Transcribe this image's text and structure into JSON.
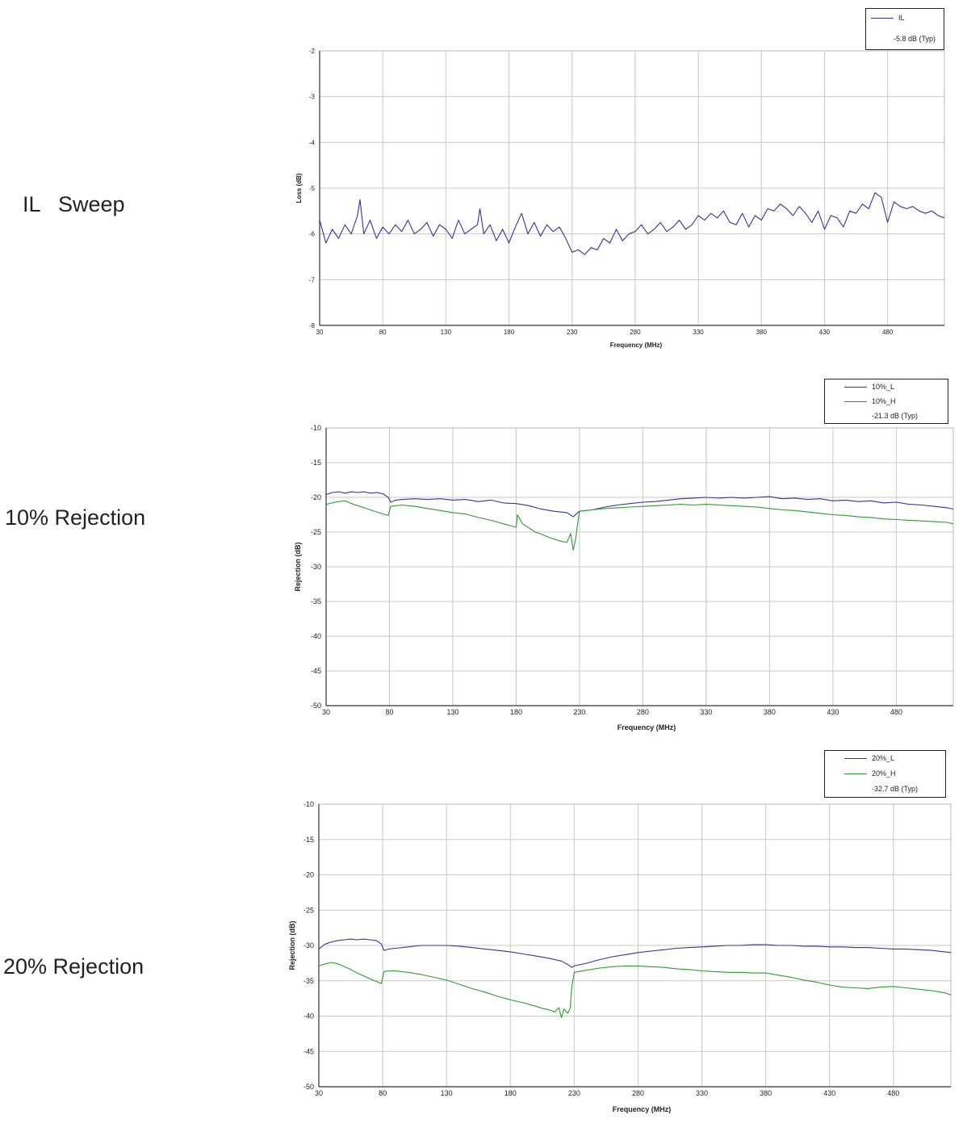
{
  "labels": {
    "il": "IL   Sweep",
    "r10": "10% Rejection",
    "r20": "20% Rejection"
  },
  "colors": {
    "L": "#34349a",
    "H": "#2e9a2e",
    "grid": "#c8c8c8",
    "axis": "#333333"
  },
  "chart_data": [
    {
      "type": "line",
      "xlabel": "Frequency (MHz)",
      "ylabel": "Loss (dB)",
      "xlim": [
        30,
        525
      ],
      "ylim": [
        -8,
        -2
      ],
      "xticks": [
        30,
        80,
        130,
        180,
        230,
        280,
        330,
        380,
        430,
        480
      ],
      "yticks": [
        -2,
        -3,
        -4,
        -5,
        -6,
        -7,
        -8
      ],
      "grid": true,
      "legend_position": "top-right",
      "legend_note": "-5.8 dB (Typ)",
      "series": [
        {
          "name": "IL",
          "color": "#34349a",
          "x": [
            30,
            35,
            40,
            45,
            50,
            55,
            60,
            62,
            65,
            70,
            75,
            80,
            85,
            90,
            95,
            100,
            105,
            110,
            115,
            120,
            125,
            130,
            135,
            140,
            145,
            150,
            155,
            157,
            160,
            165,
            170,
            175,
            180,
            185,
            190,
            195,
            200,
            205,
            210,
            215,
            220,
            225,
            230,
            235,
            240,
            245,
            250,
            255,
            260,
            265,
            270,
            275,
            280,
            285,
            290,
            295,
            300,
            305,
            310,
            315,
            320,
            325,
            330,
            335,
            340,
            345,
            350,
            355,
            360,
            365,
            370,
            375,
            380,
            385,
            390,
            395,
            400,
            405,
            410,
            415,
            420,
            425,
            430,
            435,
            440,
            445,
            450,
            455,
            460,
            465,
            470,
            475,
            480,
            485,
            490,
            495,
            500,
            505,
            510,
            515,
            520,
            525
          ],
          "y": [
            -5.7,
            -6.2,
            -5.9,
            -6.1,
            -5.8,
            -6.0,
            -5.6,
            -5.25,
            -6.0,
            -5.7,
            -6.1,
            -5.85,
            -6.0,
            -5.8,
            -5.95,
            -5.7,
            -6.0,
            -5.9,
            -5.75,
            -6.05,
            -5.8,
            -5.9,
            -6.1,
            -5.7,
            -6.0,
            -5.9,
            -5.8,
            -5.45,
            -6.0,
            -5.8,
            -6.15,
            -5.9,
            -6.2,
            -5.85,
            -5.55,
            -6.0,
            -5.75,
            -6.05,
            -5.8,
            -5.95,
            -5.85,
            -6.1,
            -6.4,
            -6.35,
            -6.45,
            -6.3,
            -6.35,
            -6.1,
            -6.2,
            -5.9,
            -6.15,
            -6.0,
            -5.95,
            -5.8,
            -6.0,
            -5.9,
            -5.75,
            -5.95,
            -5.85,
            -5.7,
            -5.9,
            -5.8,
            -5.6,
            -5.7,
            -5.55,
            -5.65,
            -5.5,
            -5.75,
            -5.8,
            -5.55,
            -5.85,
            -5.6,
            -5.7,
            -5.45,
            -5.5,
            -5.35,
            -5.45,
            -5.6,
            -5.4,
            -5.55,
            -5.75,
            -5.5,
            -5.9,
            -5.6,
            -5.65,
            -5.85,
            -5.5,
            -5.55,
            -5.35,
            -5.45,
            -5.1,
            -5.2,
            -5.75,
            -5.3,
            -5.4,
            -5.45,
            -5.4,
            -5.5,
            -5.55,
            -5.5,
            -5.6,
            -5.65
          ]
        }
      ]
    },
    {
      "type": "line",
      "xlabel": "Frequency (MHz)",
      "ylabel": "Rejection (dB)",
      "xlim": [
        30,
        525
      ],
      "ylim": [
        -50,
        -10
      ],
      "xticks": [
        30,
        80,
        130,
        180,
        230,
        280,
        330,
        380,
        430,
        480
      ],
      "yticks": [
        -10,
        -15,
        -20,
        -25,
        -30,
        -35,
        -40,
        -45,
        -50
      ],
      "grid": true,
      "legend_position": "top-right",
      "legend_note": "-21.3 dB (Typ)",
      "series": [
        {
          "name": "10%_L",
          "color": "#34349a",
          "x": [
            30,
            35,
            40,
            45,
            50,
            55,
            60,
            65,
            70,
            75,
            79,
            81,
            85,
            90,
            100,
            110,
            120,
            130,
            140,
            150,
            160,
            170,
            180,
            190,
            200,
            210,
            220,
            225,
            228,
            230,
            240,
            250,
            260,
            270,
            280,
            290,
            300,
            310,
            320,
            330,
            340,
            350,
            360,
            370,
            380,
            390,
            400,
            410,
            420,
            430,
            440,
            450,
            460,
            470,
            480,
            490,
            500,
            510,
            520,
            525
          ],
          "y": [
            -19.6,
            -19.3,
            -19.2,
            -19.4,
            -19.2,
            -19.3,
            -19.2,
            -19.4,
            -19.3,
            -19.5,
            -20.0,
            -20.7,
            -20.4,
            -20.3,
            -20.2,
            -20.3,
            -20.2,
            -20.4,
            -20.3,
            -20.6,
            -20.4,
            -20.8,
            -20.9,
            -21.2,
            -21.7,
            -22.0,
            -22.2,
            -22.8,
            -22.3,
            -22.0,
            -21.8,
            -21.4,
            -21.1,
            -20.9,
            -20.7,
            -20.6,
            -20.4,
            -20.2,
            -20.1,
            -20.0,
            -20.1,
            -20.0,
            -20.1,
            -20.0,
            -19.9,
            -20.2,
            -20.1,
            -20.3,
            -20.2,
            -20.5,
            -20.4,
            -20.6,
            -20.5,
            -20.8,
            -20.7,
            -21.0,
            -21.1,
            -21.3,
            -21.5,
            -21.7
          ]
        },
        {
          "name": "10%_H",
          "color": "#2e9a2e",
          "x": [
            30,
            35,
            40,
            45,
            50,
            55,
            60,
            65,
            70,
            75,
            79,
            81,
            85,
            90,
            100,
            110,
            120,
            130,
            140,
            150,
            160,
            170,
            180,
            181,
            185,
            190,
            195,
            200,
            205,
            210,
            215,
            220,
            223,
            225,
            227,
            228,
            230,
            240,
            250,
            260,
            270,
            280,
            290,
            300,
            310,
            320,
            330,
            340,
            350,
            360,
            370,
            380,
            390,
            400,
            410,
            420,
            430,
            440,
            450,
            460,
            470,
            480,
            490,
            500,
            510,
            520,
            525
          ],
          "y": [
            -21.0,
            -20.8,
            -20.6,
            -20.5,
            -20.9,
            -21.2,
            -21.5,
            -21.8,
            -22.1,
            -22.4,
            -22.6,
            -21.3,
            -21.2,
            -21.1,
            -21.3,
            -21.6,
            -21.9,
            -22.2,
            -22.4,
            -22.9,
            -23.3,
            -23.8,
            -24.3,
            -22.5,
            -23.8,
            -24.4,
            -25.0,
            -25.3,
            -25.7,
            -26.0,
            -26.3,
            -26.5,
            -25.2,
            -27.6,
            -26.0,
            -24.5,
            -22.0,
            -21.8,
            -21.6,
            -21.5,
            -21.4,
            -21.3,
            -21.2,
            -21.1,
            -21.0,
            -21.1,
            -21.0,
            -21.1,
            -21.2,
            -21.3,
            -21.4,
            -21.6,
            -21.8,
            -21.9,
            -22.1,
            -22.3,
            -22.5,
            -22.6,
            -22.8,
            -22.9,
            -23.1,
            -23.2,
            -23.3,
            -23.4,
            -23.5,
            -23.6,
            -23.8
          ]
        }
      ]
    },
    {
      "type": "line",
      "xlabel": "Frequency (MHz)",
      "ylabel": "Rejection (dB)",
      "xlim": [
        30,
        525
      ],
      "ylim": [
        -50,
        -10
      ],
      "xticks": [
        30,
        80,
        130,
        180,
        230,
        280,
        330,
        380,
        430,
        480
      ],
      "yticks": [
        -10,
        -15,
        -20,
        -25,
        -30,
        -35,
        -40,
        -45,
        -50
      ],
      "grid": true,
      "legend_position": "top-right",
      "legend_note": "-32.7 dB (Typ)",
      "series": [
        {
          "name": "20%_L",
          "color": "#34349a",
          "x": [
            30,
            35,
            40,
            45,
            50,
            55,
            60,
            65,
            70,
            75,
            79,
            81,
            85,
            90,
            100,
            110,
            120,
            130,
            140,
            150,
            160,
            170,
            180,
            190,
            200,
            210,
            220,
            225,
            228,
            230,
            240,
            250,
            260,
            270,
            280,
            290,
            300,
            310,
            320,
            330,
            340,
            350,
            360,
            370,
            380,
            390,
            400,
            410,
            420,
            430,
            440,
            450,
            460,
            470,
            480,
            490,
            500,
            510,
            520,
            525
          ],
          "y": [
            -30.5,
            -29.8,
            -29.5,
            -29.3,
            -29.2,
            -29.1,
            -29.2,
            -29.1,
            -29.2,
            -29.3,
            -29.8,
            -30.7,
            -30.5,
            -30.4,
            -30.2,
            -30.0,
            -30.0,
            -30.0,
            -30.1,
            -30.3,
            -30.5,
            -30.7,
            -30.9,
            -31.2,
            -31.5,
            -31.8,
            -32.2,
            -32.7,
            -33.1,
            -32.9,
            -32.5,
            -32.0,
            -31.6,
            -31.3,
            -31.0,
            -30.8,
            -30.6,
            -30.4,
            -30.3,
            -30.2,
            -30.1,
            -30.0,
            -30.0,
            -29.9,
            -29.9,
            -30.0,
            -30.0,
            -30.1,
            -30.1,
            -30.2,
            -30.2,
            -30.3,
            -30.3,
            -30.4,
            -30.5,
            -30.5,
            -30.6,
            -30.7,
            -30.9,
            -31.0
          ]
        },
        {
          "name": "20%_H",
          "color": "#2e9a2e",
          "x": [
            30,
            35,
            40,
            45,
            50,
            55,
            60,
            65,
            70,
            75,
            79,
            81,
            85,
            90,
            100,
            110,
            120,
            130,
            140,
            150,
            160,
            170,
            180,
            190,
            200,
            205,
            210,
            215,
            218,
            220,
            222,
            225,
            227,
            228,
            230,
            240,
            250,
            260,
            270,
            280,
            290,
            300,
            310,
            320,
            330,
            340,
            350,
            360,
            370,
            380,
            390,
            400,
            410,
            420,
            430,
            440,
            450,
            460,
            470,
            480,
            490,
            500,
            510,
            520,
            525
          ],
          "y": [
            -32.9,
            -32.6,
            -32.4,
            -32.6,
            -33.0,
            -33.4,
            -33.9,
            -34.3,
            -34.7,
            -35.1,
            -35.4,
            -33.7,
            -33.6,
            -33.6,
            -33.8,
            -34.1,
            -34.5,
            -34.9,
            -35.5,
            -36.1,
            -36.6,
            -37.2,
            -37.7,
            -38.1,
            -38.6,
            -38.9,
            -39.1,
            -39.4,
            -38.8,
            -40.2,
            -39.0,
            -39.6,
            -38.8,
            -36.0,
            -33.8,
            -33.5,
            -33.2,
            -33.0,
            -32.9,
            -32.9,
            -33.0,
            -33.1,
            -33.3,
            -33.4,
            -33.6,
            -33.7,
            -33.8,
            -33.8,
            -33.9,
            -33.9,
            -34.2,
            -34.5,
            -34.9,
            -35.2,
            -35.6,
            -35.9,
            -36.0,
            -36.1,
            -35.9,
            -35.8,
            -36.0,
            -36.2,
            -36.4,
            -36.7,
            -37.0
          ]
        }
      ]
    }
  ]
}
